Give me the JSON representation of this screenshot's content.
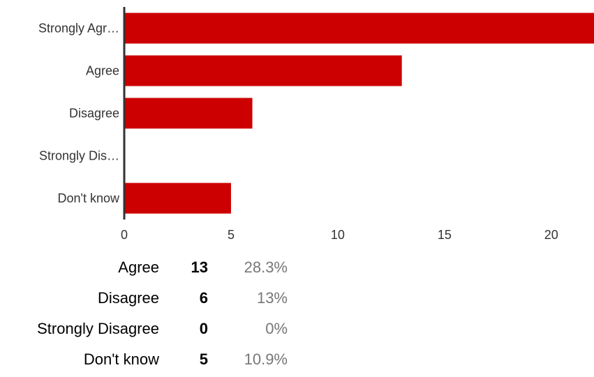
{
  "colors": {
    "bar": "#cc0000",
    "axis": "#333333",
    "tick_label": "#333333",
    "pct_text": "#777777"
  },
  "chart_data": {
    "type": "bar",
    "orientation": "horizontal",
    "categories": [
      "Strongly Agr…",
      "Agree",
      "Disagree",
      "Strongly Dis…",
      "Don't know"
    ],
    "values": [
      22,
      13,
      6,
      0,
      5
    ],
    "xlim": [
      0,
      22
    ],
    "xticks": [
      "0",
      "5",
      "10",
      "15",
      "20"
    ],
    "grid": false,
    "legend": "none"
  },
  "summary": {
    "rows": [
      {
        "label": "Agree",
        "count": "13",
        "pct": "28.3%"
      },
      {
        "label": "Disagree",
        "count": "6",
        "pct": "13%"
      },
      {
        "label": "Strongly Disagree",
        "count": "0",
        "pct": "0%"
      },
      {
        "label": "Don't know",
        "count": "5",
        "pct": "10.9%"
      }
    ]
  }
}
